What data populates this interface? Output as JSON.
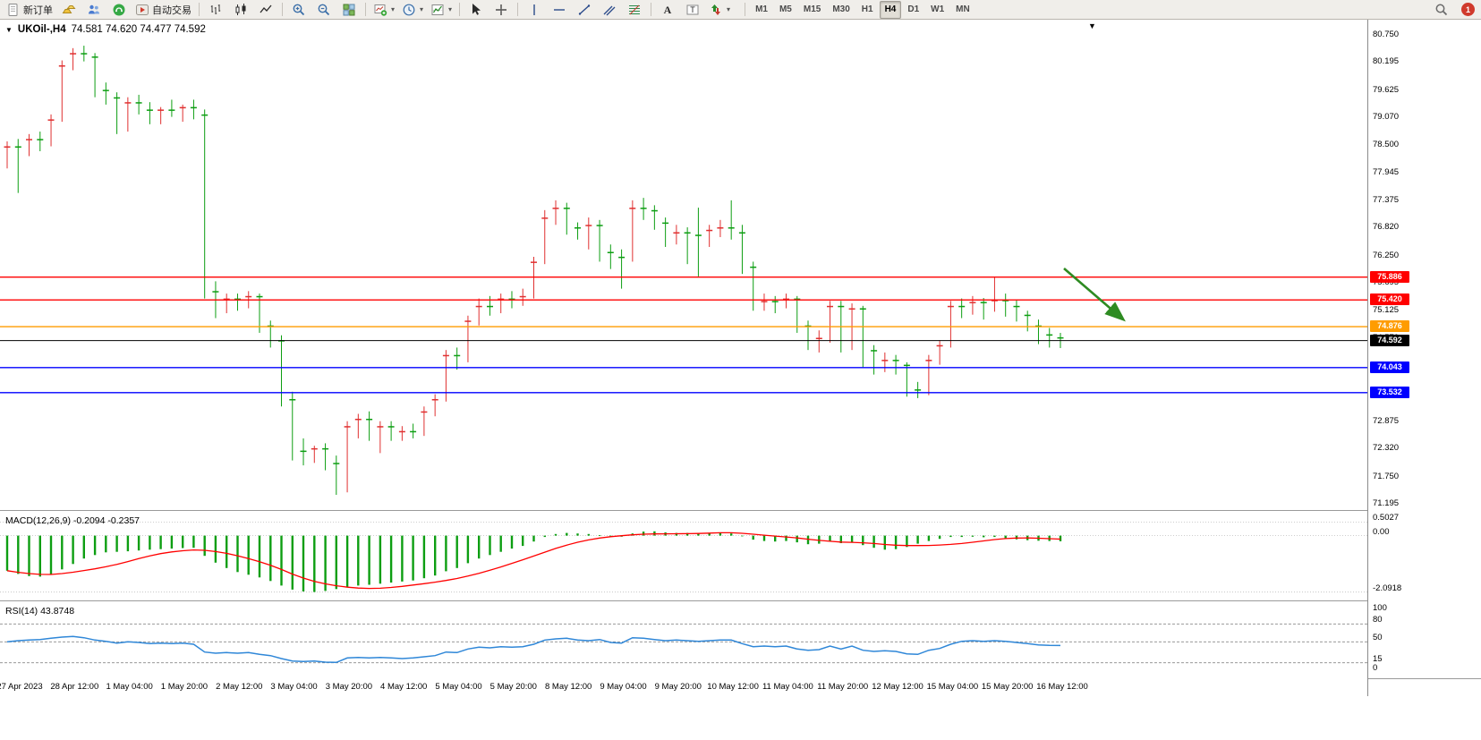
{
  "toolbar": {
    "new_order": "新订单",
    "auto_trading": "自动交易",
    "notification_count": "1",
    "groups": [
      {
        "items": [
          {
            "icon": "new-order-icon",
            "label_key": "new_order"
          },
          {
            "icon": "gold-icon"
          },
          {
            "icon": "accounts-icon"
          },
          {
            "icon": "headset-icon"
          },
          {
            "icon": "auto-trading-icon",
            "label_key": "auto_trading"
          }
        ]
      },
      {
        "items": [
          {
            "icon": "bar-chart-icon"
          },
          {
            "icon": "candlestick-chart-icon"
          },
          {
            "icon": "line-chart-icon"
          }
        ]
      },
      {
        "items": [
          {
            "icon": "zoom-in-icon"
          },
          {
            "icon": "zoom-out-icon"
          },
          {
            "icon": "tile-windows-icon"
          }
        ]
      },
      {
        "items": [
          {
            "icon": "new-chart-icon",
            "dropdown": true
          },
          {
            "icon": "profiles-icon",
            "dropdown": true
          },
          {
            "icon": "indicators-icon",
            "dropdown": true
          }
        ]
      },
      {
        "items": [
          {
            "icon": "cursor-icon"
          },
          {
            "icon": "crosshair-icon"
          }
        ]
      },
      {
        "items": [
          {
            "icon": "vertical-line-icon"
          },
          {
            "icon": "horizontal-line-icon"
          },
          {
            "icon": "trendline-icon"
          },
          {
            "icon": "channel-icon"
          },
          {
            "icon": "fibonacci-icon"
          }
        ]
      },
      {
        "items": [
          {
            "icon": "text-icon"
          },
          {
            "icon": "label-icon"
          },
          {
            "icon": "shapes-icon",
            "dropdown": true
          }
        ]
      }
    ],
    "timeframes": [
      "M1",
      "M5",
      "M15",
      "M30",
      "H1",
      "H4",
      "D1",
      "W1",
      "MN"
    ],
    "active_timeframe": "H4"
  },
  "chart_data": {
    "type": "candlestick",
    "title": "UKOil-,H4",
    "ohlc_line": "74.581 74.620 74.477 74.592",
    "up_color": "#e03030",
    "down_color": "#0d9e12",
    "ylim": [
      71.14,
      81.13
    ],
    "y_ticks": [
      "80.750",
      "80.195",
      "79.625",
      "79.070",
      "78.500",
      "77.945",
      "77.375",
      "76.820",
      "76.250",
      "75.695",
      "75.125",
      "74.570",
      "74.000",
      "73.445",
      "72.875",
      "72.320",
      "71.750",
      "71.195"
    ],
    "x_labels": [
      "27 Apr 2023",
      "28 Apr 12:00",
      "1 May 04:00",
      "1 May 20:00",
      "2 May 12:00",
      "3 May 04:00",
      "3 May 20:00",
      "4 May 12:00",
      "5 May 04:00",
      "5 May 20:00",
      "8 May 12:00",
      "9 May 04:00",
      "9 May 20:00",
      "10 May 12:00",
      "11 May 04:00",
      "11 May 20:00",
      "12 May 12:00",
      "15 May 04:00",
      "15 May 20:00",
      "16 May 12:00"
    ],
    "h_lines": [
      {
        "price": 75.886,
        "label": "75.886",
        "color": "#ff0000"
      },
      {
        "price": 75.42,
        "label": "75.420",
        "color": "#ff0000"
      },
      {
        "price": 74.876,
        "label": "74.876",
        "color": "#ff9c00"
      },
      {
        "price": 74.592,
        "label": "74.592",
        "color": "#000000"
      },
      {
        "price": 74.043,
        "label": "74.043",
        "color": "#0000ff"
      },
      {
        "price": 73.532,
        "label": "73.532",
        "color": "#0000ff"
      }
    ],
    "annotation_arrow": {
      "x1_frac": 0.778,
      "price1": 76.06,
      "x2_frac": 0.821,
      "price2": 75.05,
      "color": "#2e8b22"
    },
    "candles": [
      [
        78.3,
        78.65,
        78.1,
        78.55
      ],
      [
        78.55,
        78.7,
        77.6,
        78.45
      ],
      [
        78.45,
        78.8,
        78.35,
        78.7
      ],
      [
        78.7,
        78.85,
        78.45,
        78.6
      ],
      [
        78.6,
        79.2,
        78.55,
        79.1
      ],
      [
        79.1,
        80.3,
        79.05,
        80.2
      ],
      [
        80.2,
        80.55,
        80.1,
        80.45
      ],
      [
        80.45,
        80.6,
        80.28,
        80.38
      ],
      [
        80.38,
        80.45,
        79.55,
        79.7
      ],
      [
        79.7,
        79.85,
        79.4,
        79.55
      ],
      [
        79.55,
        79.65,
        78.8,
        78.95
      ],
      [
        78.95,
        79.55,
        78.85,
        79.45
      ],
      [
        79.45,
        79.6,
        79.2,
        79.3
      ],
      [
        79.3,
        79.45,
        79.0,
        79.1
      ],
      [
        79.1,
        79.35,
        79.0,
        79.3
      ],
      [
        79.3,
        79.5,
        79.15,
        79.25
      ],
      [
        79.25,
        79.4,
        79.05,
        79.35
      ],
      [
        79.35,
        79.5,
        79.1,
        79.2
      ],
      [
        79.2,
        79.3,
        75.45,
        75.6
      ],
      [
        75.6,
        75.8,
        75.05,
        75.3
      ],
      [
        75.3,
        75.55,
        75.15,
        75.45
      ],
      [
        75.45,
        75.55,
        75.2,
        75.35
      ],
      [
        75.35,
        75.6,
        75.25,
        75.5
      ],
      [
        75.5,
        75.55,
        74.75,
        74.9
      ],
      [
        74.9,
        75.0,
        74.45,
        74.6
      ],
      [
        74.6,
        74.7,
        73.25,
        73.4
      ],
      [
        73.4,
        73.55,
        72.15,
        72.35
      ],
      [
        72.35,
        72.6,
        72.05,
        72.25
      ],
      [
        72.25,
        72.45,
        72.1,
        72.4
      ],
      [
        72.4,
        72.5,
        71.95,
        72.1
      ],
      [
        72.1,
        72.25,
        71.45,
        71.6
      ],
      [
        71.6,
        72.95,
        71.5,
        72.85
      ],
      [
        72.85,
        73.1,
        72.6,
        73.0
      ],
      [
        73.0,
        73.15,
        72.55,
        72.75
      ],
      [
        72.75,
        72.95,
        72.3,
        72.85
      ],
      [
        72.85,
        72.95,
        72.55,
        72.7
      ],
      [
        72.7,
        72.85,
        72.55,
        72.75
      ],
      [
        72.75,
        72.9,
        72.6,
        72.7
      ],
      [
        72.7,
        73.25,
        72.65,
        73.15
      ],
      [
        73.15,
        73.5,
        73.05,
        73.4
      ],
      [
        73.4,
        74.4,
        73.35,
        74.3
      ],
      [
        74.3,
        74.45,
        74.0,
        74.2
      ],
      [
        74.2,
        75.1,
        74.15,
        75.0
      ],
      [
        75.0,
        75.45,
        74.9,
        75.3
      ],
      [
        75.3,
        75.5,
        75.1,
        75.25
      ],
      [
        75.25,
        75.55,
        75.15,
        75.45
      ],
      [
        75.45,
        75.6,
        75.25,
        75.4
      ],
      [
        75.4,
        75.65,
        75.3,
        75.5
      ],
      [
        75.5,
        76.3,
        75.45,
        76.2
      ],
      [
        76.2,
        77.25,
        76.15,
        77.1
      ],
      [
        77.1,
        77.45,
        76.95,
        77.3
      ],
      [
        77.3,
        77.4,
        76.75,
        76.9
      ],
      [
        76.9,
        77.0,
        76.65,
        76.85
      ],
      [
        76.85,
        77.1,
        76.45,
        76.95
      ],
      [
        76.95,
        77.05,
        76.2,
        76.4
      ],
      [
        76.4,
        76.55,
        76.05,
        76.3
      ],
      [
        76.3,
        76.45,
        75.65,
        76.25
      ],
      [
        76.25,
        77.45,
        76.2,
        77.3
      ],
      [
        77.3,
        77.5,
        77.05,
        77.25
      ],
      [
        77.25,
        77.35,
        76.85,
        77.0
      ],
      [
        77.0,
        77.1,
        76.5,
        76.7
      ],
      [
        76.7,
        76.95,
        76.55,
        76.8
      ],
      [
        76.8,
        76.9,
        76.15,
        76.75
      ],
      [
        76.75,
        77.3,
        75.9,
        76.7
      ],
      [
        76.7,
        76.95,
        76.5,
        76.85
      ],
      [
        76.85,
        77.05,
        76.7,
        76.9
      ],
      [
        76.9,
        77.45,
        76.65,
        76.8
      ],
      [
        76.8,
        76.95,
        75.95,
        76.1
      ],
      [
        76.1,
        76.2,
        75.2,
        75.35
      ],
      [
        75.35,
        75.55,
        75.2,
        75.4
      ],
      [
        75.4,
        75.5,
        75.15,
        75.3
      ],
      [
        75.3,
        75.55,
        75.25,
        75.45
      ],
      [
        75.45,
        75.5,
        74.75,
        74.9
      ],
      [
        74.9,
        75.0,
        74.4,
        74.55
      ],
      [
        74.55,
        74.8,
        74.35,
        74.65
      ],
      [
        74.65,
        75.4,
        74.55,
        75.3
      ],
      [
        75.3,
        75.4,
        74.35,
        74.5
      ],
      [
        74.5,
        75.35,
        74.4,
        75.25
      ],
      [
        75.25,
        75.3,
        74.05,
        74.4
      ],
      [
        74.4,
        74.5,
        73.9,
        74.15
      ],
      [
        74.15,
        74.35,
        73.95,
        74.2
      ],
      [
        74.2,
        74.3,
        73.9,
        74.1
      ],
      [
        74.1,
        74.15,
        73.45,
        73.6
      ],
      [
        73.6,
        73.75,
        73.42,
        73.55
      ],
      [
        73.55,
        74.3,
        73.48,
        74.2
      ],
      [
        74.2,
        74.6,
        74.1,
        74.5
      ],
      [
        74.5,
        75.4,
        74.45,
        75.3
      ],
      [
        75.3,
        75.45,
        75.05,
        75.25
      ],
      [
        75.25,
        75.5,
        75.12,
        75.38
      ],
      [
        75.38,
        75.46,
        75.02,
        75.28
      ],
      [
        75.28,
        75.89,
        75.18,
        75.42
      ],
      [
        75.42,
        75.55,
        75.08,
        75.3
      ],
      [
        75.3,
        75.42,
        74.98,
        75.12
      ],
      [
        75.12,
        75.2,
        74.78,
        74.9
      ],
      [
        74.9,
        75.02,
        74.52,
        74.72
      ],
      [
        74.72,
        74.85,
        74.45,
        74.66
      ],
      [
        74.66,
        74.75,
        74.44,
        74.59
      ]
    ],
    "macd": {
      "label": "MACD(12,26,9) -0.2094 -0.2357",
      "ylim": [
        -2.4,
        0.85
      ],
      "axis_ticks": [
        {
          "v": 0.5027,
          "label": "0.5027"
        },
        {
          "v": 0,
          "label": "0.00"
        },
        {
          "v": -2.0918,
          "label": "-2.0918"
        }
      ],
      "hist_color": "#0d9e12",
      "signal_color": "#ff0000",
      "signal_period": 9,
      "histogram": [
        -1.3,
        -1.42,
        -1.5,
        -1.52,
        -1.45,
        -1.25,
        -1.05,
        -0.85,
        -0.72,
        -0.62,
        -0.6,
        -0.58,
        -0.55,
        -0.52,
        -0.5,
        -0.48,
        -0.46,
        -0.45,
        -0.75,
        -1.0,
        -1.2,
        -1.35,
        -1.45,
        -1.55,
        -1.68,
        -1.85,
        -2.0,
        -2.07,
        -2.09,
        -2.05,
        -1.98,
        -1.9,
        -1.85,
        -1.82,
        -1.78,
        -1.74,
        -1.7,
        -1.66,
        -1.58,
        -1.48,
        -1.32,
        -1.2,
        -1.02,
        -0.85,
        -0.72,
        -0.6,
        -0.48,
        -0.38,
        -0.22,
        -0.05,
        0.06,
        0.1,
        0.08,
        0.06,
        0.02,
        -0.02,
        -0.04,
        0.08,
        0.15,
        0.16,
        0.12,
        0.1,
        0.1,
        0.08,
        0.08,
        0.1,
        0.08,
        -0.02,
        -0.15,
        -0.2,
        -0.22,
        -0.2,
        -0.25,
        -0.32,
        -0.3,
        -0.22,
        -0.28,
        -0.25,
        -0.35,
        -0.45,
        -0.52,
        -0.5,
        -0.42,
        -0.3,
        -0.2,
        -0.12,
        -0.05,
        -0.05,
        -0.04,
        -0.06,
        -0.05,
        -0.1,
        -0.14,
        -0.17,
        -0.19,
        -0.2,
        -0.2094
      ]
    },
    "rsi": {
      "label": "RSI(14) 43.8748",
      "ylim": [
        -11,
        115
      ],
      "axis_ticks": [
        {
          "v": 100,
          "label": "100"
        },
        {
          "v": 80,
          "label": "80"
        },
        {
          "v": 50,
          "label": "50"
        },
        {
          "v": 15,
          "label": "15"
        },
        {
          "v": 0,
          "label": "0"
        }
      ],
      "levels": [
        80,
        50,
        15
      ],
      "line_color": "#2f87d8",
      "values": [
        50,
        52,
        53,
        54,
        56,
        58,
        59,
        57,
        53,
        51,
        48,
        50,
        49,
        47,
        48,
        47,
        48,
        46,
        33,
        31,
        32,
        31,
        32,
        29,
        27,
        22,
        18,
        17,
        18,
        16,
        15.5,
        23,
        24,
        23,
        24,
        23,
        22,
        23,
        25,
        27,
        33,
        32,
        38,
        41,
        40,
        42,
        41,
        42,
        46,
        53,
        55,
        56,
        53,
        52,
        54,
        49,
        48,
        57,
        56,
        54,
        52,
        53,
        52,
        51,
        52,
        53,
        53,
        47,
        42,
        43,
        42,
        43,
        38,
        36,
        37,
        43,
        38,
        43,
        36,
        34,
        35,
        34,
        30,
        29,
        36,
        39,
        46,
        51,
        52,
        51,
        52,
        51,
        49,
        47,
        45,
        44,
        43.87
      ]
    }
  }
}
